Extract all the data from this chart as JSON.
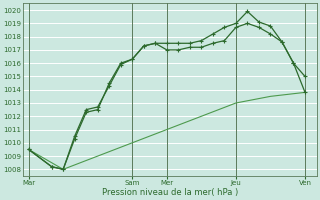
{
  "xlabel": "Pression niveau de la mer( hPa )",
  "bg_color": "#cce8e0",
  "plot_bg_color": "#cce8e0",
  "grid_color": "#ffffff",
  "line_color_dark": "#2d6a2d",
  "line_color_light": "#4d9a4d",
  "ylim": [
    1007.5,
    1020.5
  ],
  "yticks": [
    1008,
    1009,
    1010,
    1011,
    1012,
    1013,
    1014,
    1015,
    1016,
    1017,
    1018,
    1019,
    1020
  ],
  "xtick_labels": [
    "Mar",
    "Sam",
    "Mer",
    "Jeu",
    "Ven"
  ],
  "xtick_pos": [
    0,
    9,
    12,
    18,
    24
  ],
  "xlim": [
    -0.5,
    25
  ],
  "vline_pos": [
    0,
    9,
    12,
    18,
    24
  ],
  "series1_x": [
    0,
    2,
    3,
    4,
    5,
    6,
    7,
    8,
    9,
    10,
    11,
    12,
    13,
    14,
    15,
    16,
    17,
    18,
    19,
    20,
    21,
    22,
    23,
    24
  ],
  "series1_y": [
    1009.5,
    1008.2,
    1008.0,
    1010.5,
    1012.5,
    1012.7,
    1014.3,
    1015.9,
    1016.3,
    1017.3,
    1017.5,
    1017.0,
    1017.0,
    1017.2,
    1017.2,
    1017.5,
    1017.7,
    1018.7,
    1019.0,
    1018.7,
    1018.2,
    1017.6,
    1016.0,
    1015.0
  ],
  "series2_x": [
    0,
    2,
    3,
    4,
    5,
    6,
    7,
    8,
    9,
    10,
    11,
    12,
    13,
    14,
    15,
    16,
    17,
    18,
    19,
    20,
    21,
    22,
    23,
    24
  ],
  "series2_y": [
    1009.5,
    1008.2,
    1008.0,
    1010.3,
    1012.3,
    1012.5,
    1014.5,
    1016.0,
    1016.3,
    1017.3,
    1017.5,
    1017.5,
    1017.5,
    1017.5,
    1017.7,
    1018.2,
    1018.7,
    1019.0,
    1019.9,
    1019.1,
    1018.8,
    1017.6,
    1016.0,
    1013.8
  ],
  "series3_x": [
    0,
    3,
    6,
    9,
    12,
    15,
    18,
    21,
    24
  ],
  "series3_y": [
    1009.5,
    1008.0,
    1009.0,
    1010.0,
    1011.0,
    1012.0,
    1013.0,
    1013.5,
    1013.8
  ]
}
